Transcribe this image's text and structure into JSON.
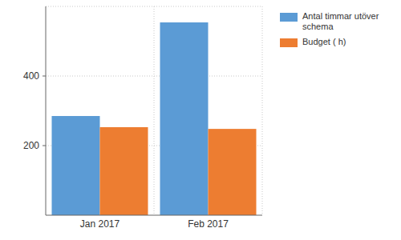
{
  "chart_data": {
    "type": "bar",
    "categories": [
      "Jan 2017",
      "Feb 2017"
    ],
    "series": [
      {
        "name": "Antal timmar utöver schema",
        "color": "#5b9bd5",
        "values": [
          285,
          554
        ]
      },
      {
        "name": "Budget ( h)",
        "color": "#ed7d31",
        "values": [
          253,
          248
        ]
      }
    ],
    "ylim": [
      0,
      600
    ],
    "yticks": [
      200,
      400
    ],
    "grid": true,
    "legend": "top-right"
  }
}
